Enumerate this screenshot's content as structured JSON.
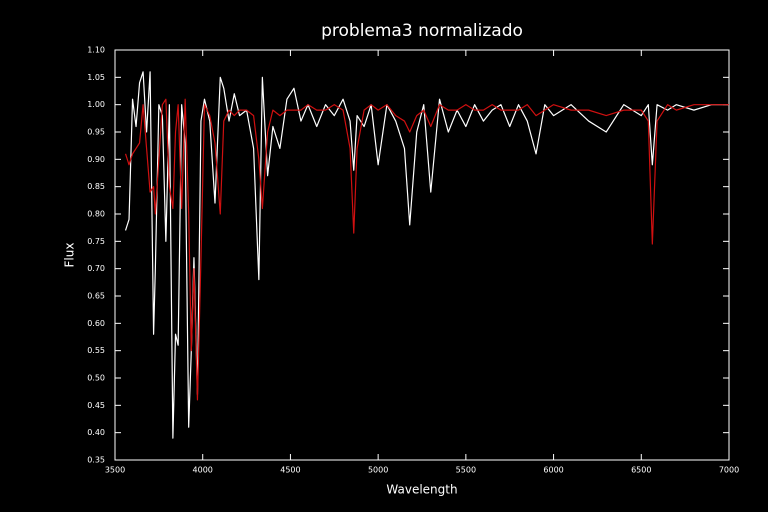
{
  "chart_data": {
    "type": "line",
    "title": "problema3  normalizado",
    "x_label": "Wavelength",
    "y_label": "Flux",
    "x": [
      3560,
      3580,
      3600,
      3620,
      3640,
      3660,
      3680,
      3700,
      3720,
      3730,
      3750,
      3770,
      3790,
      3810,
      3830,
      3845,
      3860,
      3880,
      3900,
      3920,
      3935,
      3950,
      3970,
      3990,
      4010,
      4040,
      4070,
      4100,
      4120,
      4150,
      4180,
      4210,
      4250,
      4290,
      4320,
      4340,
      4370,
      4400,
      4440,
      4480,
      4520,
      4560,
      4600,
      4650,
      4700,
      4750,
      4800,
      4840,
      4861,
      4880,
      4920,
      4960,
      5000,
      5050,
      5100,
      5150,
      5180,
      5220,
      5260,
      5300,
      5350,
      5400,
      5450,
      5500,
      5550,
      5600,
      5650,
      5700,
      5750,
      5800,
      5850,
      5900,
      5950,
      6000,
      6100,
      6200,
      6300,
      6400,
      6500,
      6540,
      6563,
      6590,
      6650,
      6700,
      6800,
      6900,
      7000
    ],
    "series": [
      {
        "color": "#ffffff",
        "values": [
          0.77,
          0.79,
          1.01,
          0.96,
          1.04,
          1.06,
          0.95,
          1.06,
          0.58,
          0.7,
          1.0,
          0.98,
          0.75,
          1.0,
          0.39,
          0.58,
          0.56,
          1.0,
          0.93,
          0.41,
          0.55,
          0.72,
          0.47,
          0.97,
          1.01,
          0.97,
          0.82,
          1.05,
          1.03,
          0.97,
          1.02,
          0.98,
          0.99,
          0.92,
          0.68,
          1.05,
          0.87,
          0.96,
          0.92,
          1.01,
          1.03,
          0.97,
          1.0,
          0.96,
          1.0,
          0.98,
          1.01,
          0.97,
          0.88,
          0.98,
          0.96,
          1.0,
          0.89,
          1.0,
          0.97,
          0.92,
          0.78,
          0.95,
          1.0,
          0.84,
          1.01,
          0.95,
          0.99,
          0.96,
          1.0,
          0.97,
          0.99,
          1.0,
          0.96,
          1.0,
          0.97,
          0.91,
          1.0,
          0.98,
          1.0,
          0.97,
          0.95,
          1.0,
          0.98,
          1.0,
          0.89,
          1.0,
          0.99,
          1.0,
          0.99,
          1.0,
          1.0
        ]
      },
      {
        "color": "#d01010",
        "values": [
          0.91,
          0.89,
          0.91,
          0.92,
          0.93,
          1.0,
          0.92,
          0.84,
          0.85,
          0.8,
          0.9,
          1.0,
          1.01,
          0.85,
          0.81,
          0.95,
          1.0,
          0.81,
          1.01,
          0.8,
          0.55,
          0.7,
          0.46,
          0.72,
          1.0,
          0.98,
          0.93,
          0.8,
          0.97,
          0.99,
          0.98,
          0.99,
          0.99,
          0.98,
          0.9,
          0.81,
          0.95,
          0.99,
          0.98,
          0.99,
          0.99,
          0.99,
          1.0,
          0.99,
          0.99,
          1.0,
          0.99,
          0.92,
          0.765,
          0.92,
          0.99,
          1.0,
          0.99,
          1.0,
          0.98,
          0.97,
          0.95,
          0.98,
          0.99,
          0.96,
          1.0,
          0.99,
          0.99,
          1.0,
          0.99,
          0.99,
          1.0,
          0.99,
          0.99,
          0.99,
          1.0,
          0.98,
          0.99,
          1.0,
          0.99,
          0.99,
          0.98,
          0.99,
          0.99,
          0.97,
          0.745,
          0.97,
          1.0,
          0.99,
          1.0,
          1.0,
          1.0
        ]
      }
    ],
    "xlim": [
      3500,
      7000
    ],
    "xticks": [
      3500,
      4000,
      4500,
      5000,
      5500,
      6000,
      6500,
      7000
    ],
    "ylim": [
      0.35,
      1.1
    ],
    "yticks": [
      0.35,
      {
        "value": 0.4,
        "label": "0.40"
      },
      0.45,
      {
        "value": 0.5,
        "label": "0.50"
      },
      0.55,
      {
        "value": 0.6,
        "label": "0.60"
      },
      0.65,
      {
        "value": 0.7,
        "label": "0.70"
      },
      0.75,
      {
        "value": 0.8,
        "label": "0.80"
      },
      0.85,
      {
        "value": 0.9,
        "label": "0.90"
      },
      0.95,
      {
        "value": 1,
        "label": "1.00"
      },
      1.05,
      {
        "value": 1.1,
        "label": "1.10"
      }
    ],
    "axis_color": "#ffffff"
  }
}
